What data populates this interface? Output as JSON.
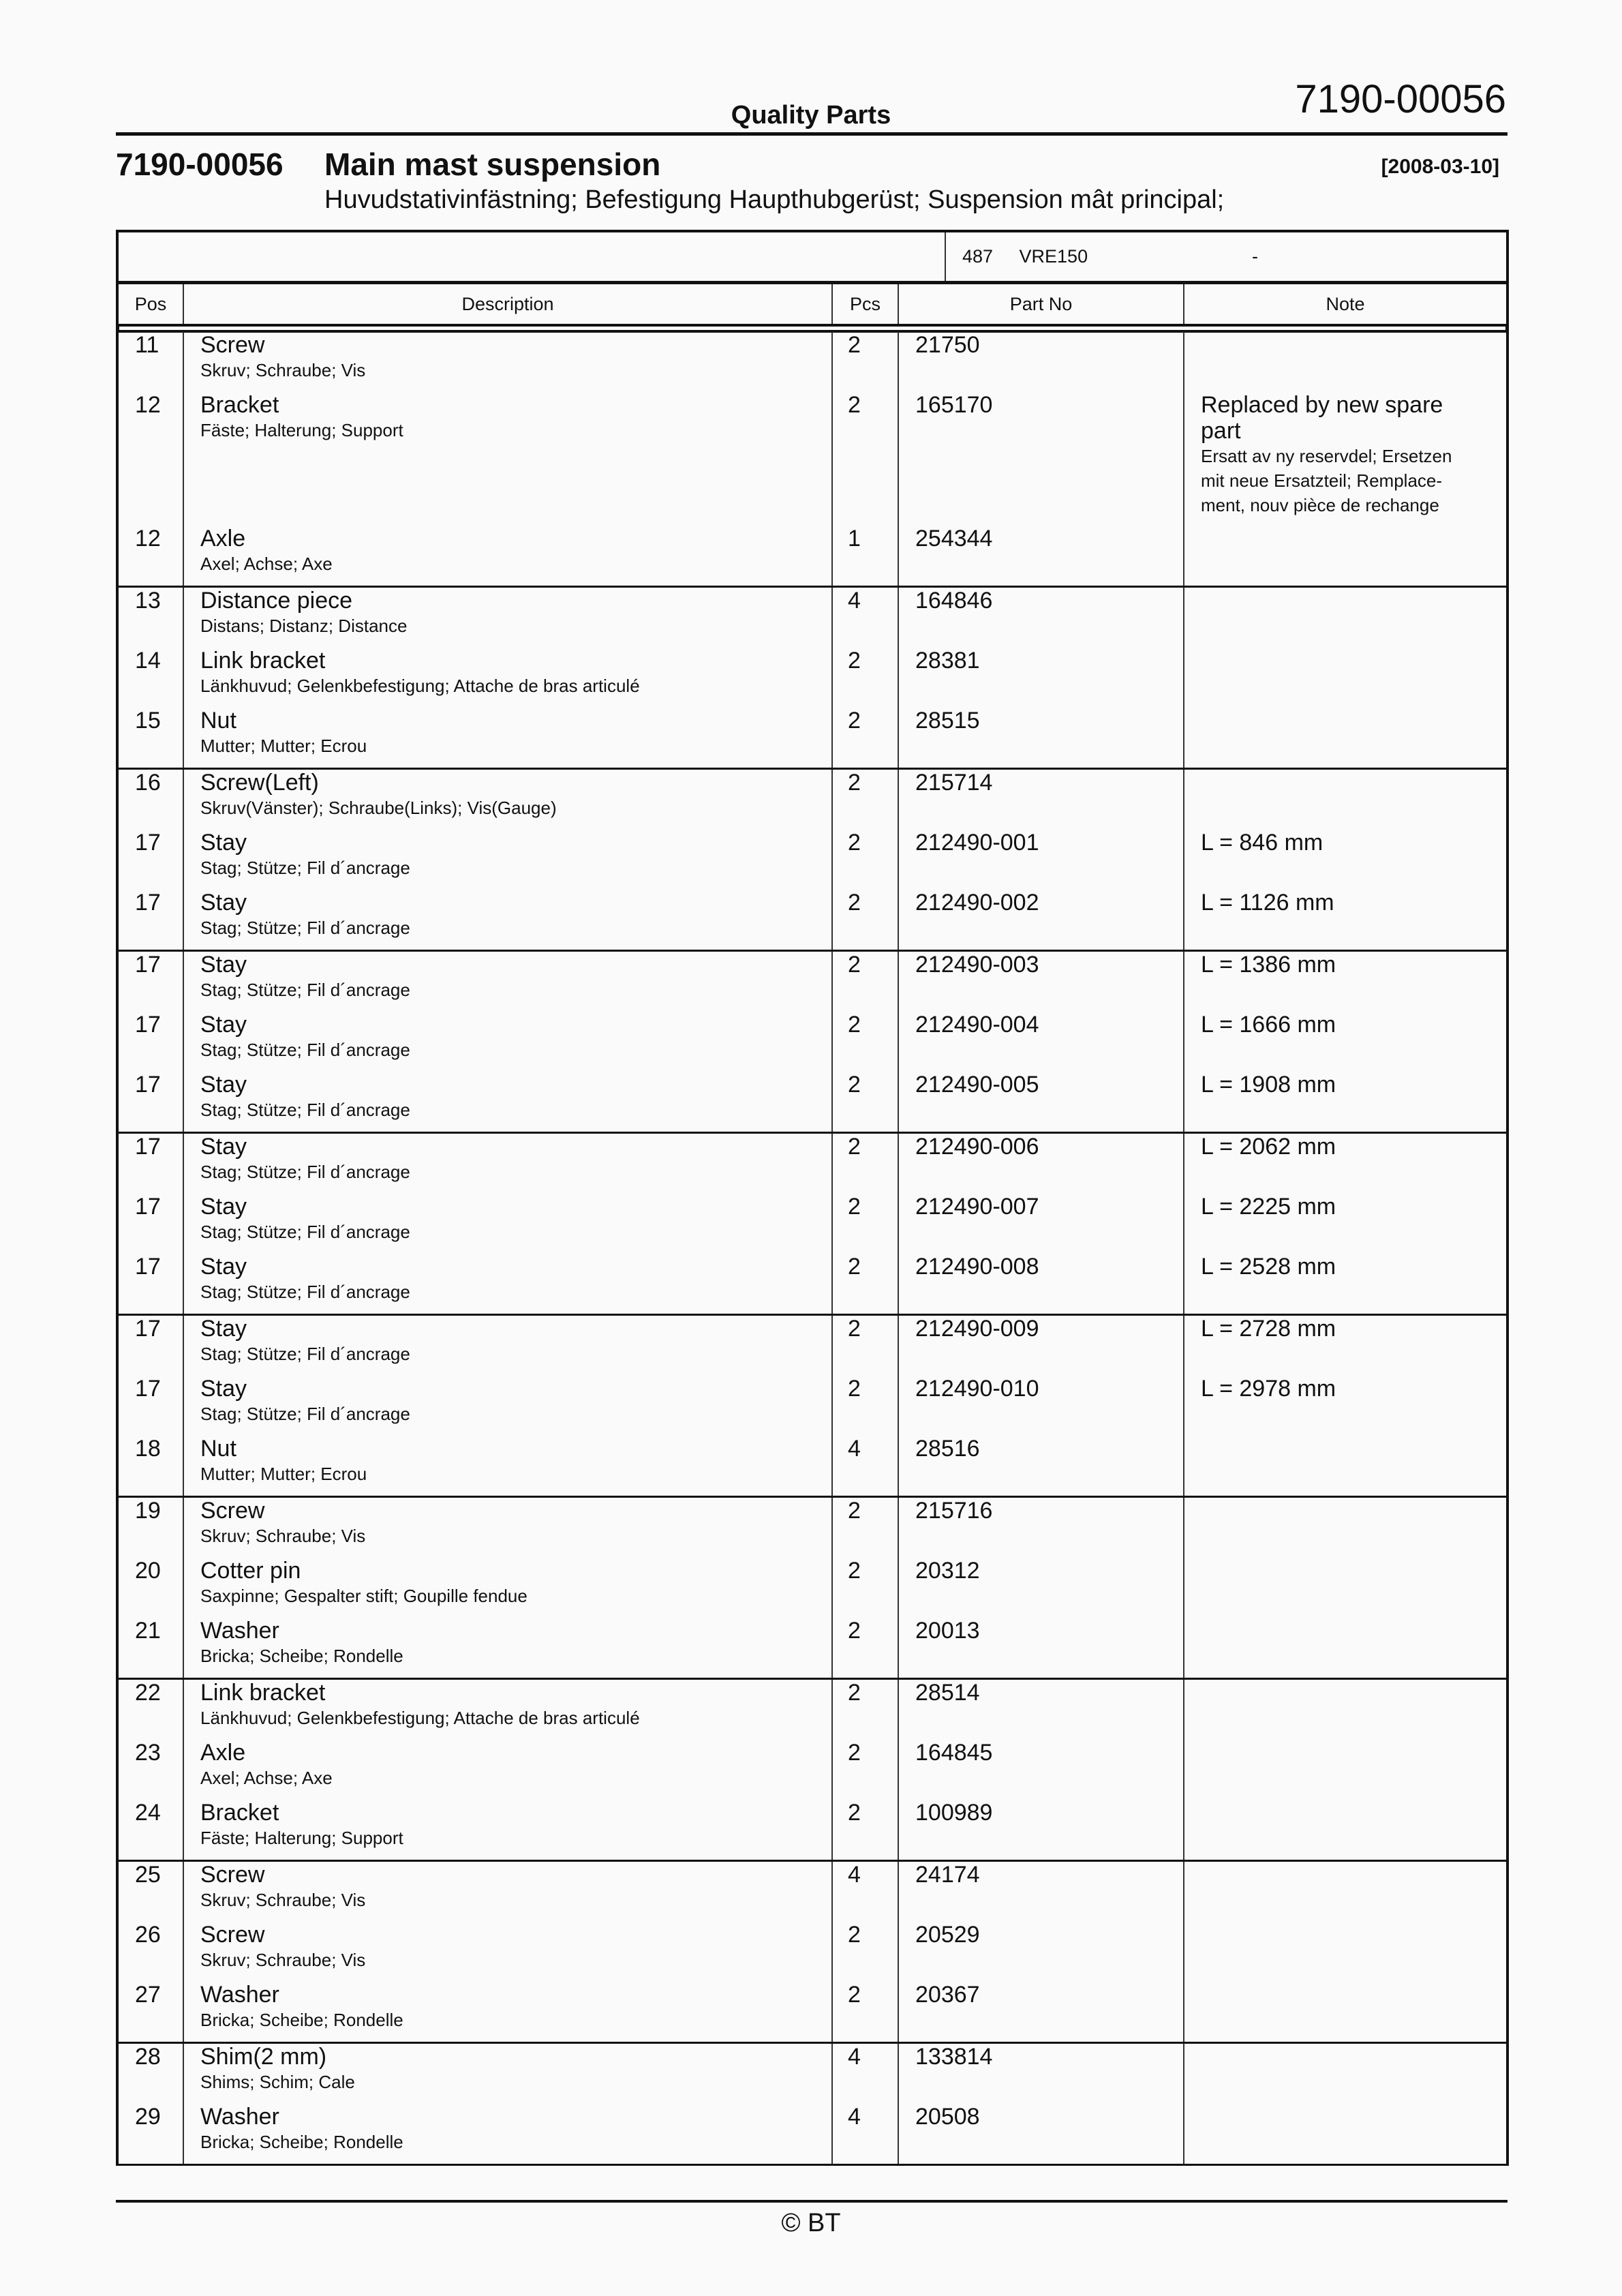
{
  "header": {
    "doc_number": "7190-00056",
    "title": "Quality Parts"
  },
  "section": {
    "number": "7190-00056",
    "title": "Main mast suspension",
    "date": "[2008-03-10]",
    "subtitle": "Huvudstativinfästning; Befestigung Haupthubgerüst; Suspension mât principal;"
  },
  "info": {
    "code": "487",
    "model": "VRE150",
    "range": "-"
  },
  "columns": {
    "pos": "Pos",
    "description": "Description",
    "pcs": "Pcs",
    "part_no": "Part No",
    "note": "Note"
  },
  "groups": [
    {
      "items": [
        {
          "pos": "11",
          "name": "Screw",
          "translation": "Skruv; Schraube; Vis",
          "pcs": "2",
          "part_no": "21750",
          "note": "",
          "note_translation": ""
        },
        {
          "pos": "12",
          "name": "Bracket",
          "translation": "Fäste; Halterung; Support",
          "pcs": "2",
          "part_no": "165170",
          "note": "Replaced by new spare part",
          "note_translation": "Ersatt av ny reservdel; Ersetzen mit neue Ersatzteil; Remplace-ment, nouv pièce de rechange"
        },
        {
          "pos": "12",
          "name": "Axle",
          "translation": "Axel; Achse; Axe",
          "pcs": "1",
          "part_no": "254344",
          "note": "",
          "note_translation": ""
        }
      ]
    },
    {
      "items": [
        {
          "pos": "13",
          "name": "Distance piece",
          "translation": "Distans; Distanz; Distance",
          "pcs": "4",
          "part_no": "164846",
          "note": "",
          "note_translation": ""
        },
        {
          "pos": "14",
          "name": "Link bracket",
          "translation": "Länkhuvud; Gelenkbefestigung; Attache de bras articulé",
          "pcs": "2",
          "part_no": "28381",
          "note": "",
          "note_translation": ""
        },
        {
          "pos": "15",
          "name": "Nut",
          "translation": "Mutter; Mutter; Ecrou",
          "pcs": "2",
          "part_no": "28515",
          "note": "",
          "note_translation": ""
        }
      ]
    },
    {
      "items": [
        {
          "pos": "16",
          "name": "Screw(Left)",
          "translation": "Skruv(Vänster); Schraube(Links); Vis(Gauge)",
          "pcs": "2",
          "part_no": "215714",
          "note": "",
          "note_translation": ""
        },
        {
          "pos": "17",
          "name": "Stay",
          "translation": "Stag; Stütze; Fil d´ancrage",
          "pcs": "2",
          "part_no": "212490-001",
          "note": "L = 846 mm",
          "note_translation": ""
        },
        {
          "pos": "17",
          "name": "Stay",
          "translation": "Stag; Stütze; Fil d´ancrage",
          "pcs": "2",
          "part_no": "212490-002",
          "note": "L = 1126 mm",
          "note_translation": ""
        }
      ]
    },
    {
      "items": [
        {
          "pos": "17",
          "name": "Stay",
          "translation": "Stag; Stütze; Fil d´ancrage",
          "pcs": "2",
          "part_no": "212490-003",
          "note": "L = 1386 mm",
          "note_translation": ""
        },
        {
          "pos": "17",
          "name": "Stay",
          "translation": "Stag; Stütze; Fil d´ancrage",
          "pcs": "2",
          "part_no": "212490-004",
          "note": "L = 1666 mm",
          "note_translation": ""
        },
        {
          "pos": "17",
          "name": "Stay",
          "translation": "Stag; Stütze; Fil d´ancrage",
          "pcs": "2",
          "part_no": "212490-005",
          "note": "L = 1908 mm",
          "note_translation": ""
        }
      ]
    },
    {
      "items": [
        {
          "pos": "17",
          "name": "Stay",
          "translation": "Stag; Stütze; Fil d´ancrage",
          "pcs": "2",
          "part_no": "212490-006",
          "note": "L = 2062 mm",
          "note_translation": ""
        },
        {
          "pos": "17",
          "name": "Stay",
          "translation": "Stag; Stütze; Fil d´ancrage",
          "pcs": "2",
          "part_no": "212490-007",
          "note": "L = 2225 mm",
          "note_translation": ""
        },
        {
          "pos": "17",
          "name": "Stay",
          "translation": "Stag; Stütze; Fil d´ancrage",
          "pcs": "2",
          "part_no": "212490-008",
          "note": "L = 2528 mm",
          "note_translation": ""
        }
      ]
    },
    {
      "items": [
        {
          "pos": "17",
          "name": "Stay",
          "translation": "Stag; Stütze; Fil d´ancrage",
          "pcs": "2",
          "part_no": "212490-009",
          "note": "L = 2728 mm",
          "note_translation": ""
        },
        {
          "pos": "17",
          "name": "Stay",
          "translation": "Stag; Stütze; Fil d´ancrage",
          "pcs": "2",
          "part_no": "212490-010",
          "note": "L = 2978 mm",
          "note_translation": ""
        },
        {
          "pos": "18",
          "name": "Nut",
          "translation": "Mutter; Mutter; Ecrou",
          "pcs": "4",
          "part_no": "28516",
          "note": "",
          "note_translation": ""
        }
      ]
    },
    {
      "items": [
        {
          "pos": "19",
          "name": "Screw",
          "translation": "Skruv; Schraube; Vis",
          "pcs": "2",
          "part_no": "215716",
          "note": "",
          "note_translation": ""
        },
        {
          "pos": "20",
          "name": "Cotter pin",
          "translation": "Saxpinne; Gespalter stift; Goupille fendue",
          "pcs": "2",
          "part_no": "20312",
          "note": "",
          "note_translation": ""
        },
        {
          "pos": "21",
          "name": "Washer",
          "translation": "Bricka; Scheibe; Rondelle",
          "pcs": "2",
          "part_no": "20013",
          "note": "",
          "note_translation": ""
        }
      ]
    },
    {
      "items": [
        {
          "pos": "22",
          "name": "Link bracket",
          "translation": "Länkhuvud; Gelenkbefestigung; Attache de bras articulé",
          "pcs": "2",
          "part_no": "28514",
          "note": "",
          "note_translation": ""
        },
        {
          "pos": "23",
          "name": "Axle",
          "translation": "Axel; Achse; Axe",
          "pcs": "2",
          "part_no": "164845",
          "note": "",
          "note_translation": ""
        },
        {
          "pos": "24",
          "name": "Bracket",
          "translation": "Fäste; Halterung; Support",
          "pcs": "2",
          "part_no": "100989",
          "note": "",
          "note_translation": ""
        }
      ]
    },
    {
      "items": [
        {
          "pos": "25",
          "name": "Screw",
          "translation": "Skruv; Schraube; Vis",
          "pcs": "4",
          "part_no": "24174",
          "note": "",
          "note_translation": ""
        },
        {
          "pos": "26",
          "name": "Screw",
          "translation": "Skruv; Schraube; Vis",
          "pcs": "2",
          "part_no": "20529",
          "note": "",
          "note_translation": ""
        },
        {
          "pos": "27",
          "name": "Washer",
          "translation": "Bricka; Scheibe; Rondelle",
          "pcs": "2",
          "part_no": "20367",
          "note": "",
          "note_translation": ""
        }
      ]
    },
    {
      "items": [
        {
          "pos": "28",
          "name": "Shim(2 mm)",
          "translation": "Shims; Schim; Cale",
          "pcs": "4",
          "part_no": "133814",
          "note": "",
          "note_translation": ""
        },
        {
          "pos": "29",
          "name": "Washer",
          "translation": "Bricka; Scheibe; Rondelle",
          "pcs": "4",
          "part_no": "20508",
          "note": "",
          "note_translation": ""
        }
      ]
    }
  ],
  "footer": {
    "copyright": "© BT"
  }
}
